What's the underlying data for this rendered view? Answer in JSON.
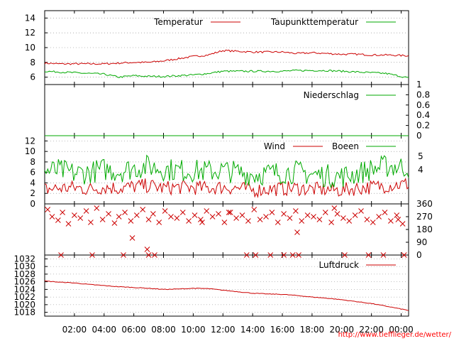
{
  "source_url": "http://www.tiefflieger.de/wetter/",
  "colors": {
    "primary": "#cc0000",
    "secondary": "#00aa00",
    "grid": "#808080"
  },
  "time_axis": {
    "range_hours": [
      0,
      24.5
    ],
    "tick_hours": [
      2,
      4,
      6,
      8,
      10,
      12,
      14,
      16,
      18,
      20,
      22,
      24
    ],
    "tick_labels": [
      "02:00",
      "04:00",
      "06:00",
      "08:00",
      "10:00",
      "12:00",
      "14:00",
      "16:00",
      "18:00",
      "20:00",
      "22:00",
      "00:00"
    ]
  },
  "chart_data": [
    {
      "id": "temperature",
      "type": "line",
      "ylim": [
        5,
        15
      ],
      "yticks": [
        6,
        8,
        10,
        12,
        14
      ],
      "grid": true,
      "legend_position": "top-right",
      "series": [
        {
          "name": "Temperatur",
          "color": "#cc0000",
          "x": [
            0,
            1,
            2,
            3,
            4,
            5,
            6,
            7,
            8,
            9,
            10,
            11,
            11.5,
            12,
            13,
            14,
            15,
            16,
            17,
            18,
            19,
            20,
            21,
            22,
            23,
            24.5
          ],
          "values": [
            7.9,
            7.8,
            7.8,
            7.8,
            7.8,
            7.9,
            8.0,
            8.0,
            8.2,
            8.5,
            8.8,
            9.0,
            9.3,
            9.6,
            9.5,
            9.4,
            9.4,
            9.4,
            9.2,
            9.3,
            9.2,
            9.1,
            9.1,
            9.0,
            9.0,
            8.9
          ]
        },
        {
          "name": "Taupunkttemperatur",
          "color": "#00aa00",
          "x": [
            0,
            1,
            2,
            3,
            4,
            5,
            6,
            7,
            8,
            9,
            10,
            11,
            12,
            13,
            14,
            15,
            16,
            17,
            18,
            19,
            20,
            21,
            22,
            23,
            24.5
          ],
          "values": [
            6.8,
            6.7,
            6.6,
            6.5,
            6.4,
            6.0,
            6.2,
            6.1,
            6.1,
            6.2,
            6.3,
            6.5,
            6.8,
            6.8,
            6.8,
            6.8,
            6.8,
            6.9,
            6.9,
            6.9,
            6.8,
            6.7,
            6.6,
            6.5,
            5.9
          ]
        }
      ]
    },
    {
      "id": "precipitation",
      "type": "line",
      "ylim": [
        0,
        1
      ],
      "yticks": [
        0,
        0.2,
        0.4,
        0.6,
        0.8,
        1
      ],
      "grid": false,
      "legend_position": "top-right",
      "series": [
        {
          "name": "Niederschlag",
          "color": "#00aa00",
          "x": [
            0,
            24.5
          ],
          "values": [
            0,
            0
          ]
        }
      ]
    },
    {
      "id": "wind",
      "type": "line",
      "ylim": [
        0,
        13
      ],
      "yticks": [
        0,
        2,
        4,
        6,
        8,
        10,
        12
      ],
      "right_ticks": [
        4,
        5
      ],
      "grid": true,
      "legend_position": "top-right",
      "series": [
        {
          "name": "Wind",
          "color": "#cc0000",
          "x": [
            0,
            1,
            2,
            3,
            4,
            5,
            6,
            7,
            8,
            9,
            10,
            11,
            12,
            13,
            14,
            15,
            16,
            17,
            18,
            19,
            20,
            21,
            22,
            23,
            24.5
          ],
          "values": [
            2.8,
            3.0,
            3.1,
            2.8,
            3.2,
            3.0,
            3.3,
            3.5,
            3.0,
            3.2,
            3.1,
            3.0,
            3.2,
            3.0,
            2.6,
            2.8,
            2.9,
            3.0,
            2.8,
            2.7,
            2.6,
            3.0,
            3.2,
            3.5,
            3.8
          ]
        },
        {
          "name": "Boeen",
          "color": "#00aa00",
          "x": [
            0,
            1,
            2,
            3,
            4,
            5,
            6,
            7,
            8,
            9,
            10,
            11,
            12,
            13,
            14,
            15,
            16,
            17,
            18,
            19,
            20,
            21,
            22,
            23,
            24.5
          ],
          "values": [
            6.2,
            6.4,
            5.8,
            6.0,
            6.6,
            6.2,
            6.8,
            7.2,
            6.6,
            6.4,
            6.3,
            6.2,
            6.4,
            6.0,
            5.6,
            5.8,
            6.0,
            6.1,
            5.6,
            5.4,
            5.2,
            5.8,
            6.6,
            7.2,
            7.0
          ]
        }
      ]
    },
    {
      "id": "wind_direction",
      "type": "scatter",
      "ylim": [
        0,
        360
      ],
      "yticks": [
        0,
        90,
        180,
        270,
        360
      ],
      "grid": false,
      "marker": "x",
      "series": [
        {
          "color": "#cc0000",
          "x": [
            0.2,
            0.5,
            0.9,
            1.2,
            1.6,
            2.0,
            2.4,
            2.8,
            3.1,
            3.5,
            3.9,
            4.3,
            4.7,
            5.0,
            5.4,
            5.8,
            6.2,
            6.6,
            7.0,
            7.3,
            7.7,
            8.1,
            8.5,
            8.9,
            9.3,
            9.7,
            10.1,
            10.5,
            10.9,
            11.3,
            11.7,
            12.1,
            12.5,
            12.9,
            13.3,
            13.7,
            14.1,
            14.5,
            14.9,
            15.3,
            15.7,
            16.1,
            16.5,
            16.9,
            17.3,
            17.7,
            18.1,
            18.5,
            18.9,
            19.3,
            19.7,
            20.1,
            20.5,
            20.9,
            21.3,
            21.7,
            22.1,
            22.5,
            22.9,
            23.3,
            23.7,
            24.1,
            1.1,
            3.2,
            5.3,
            7.0,
            7.4,
            13.6,
            14.2,
            15.2,
            16.1,
            16.7,
            17.1,
            20.2,
            21.8,
            22.8,
            24.2,
            6.9,
            5.9,
            10.6,
            12.4,
            17.0,
            19.5,
            23.8
          ],
          "values": [
            320,
            270,
            245,
            300,
            220,
            280,
            260,
            310,
            230,
            330,
            250,
            290,
            225,
            270,
            300,
            240,
            280,
            320,
            250,
            290,
            230,
            310,
            270,
            260,
            300,
            240,
            280,
            250,
            310,
            270,
            290,
            230,
            300,
            260,
            280,
            240,
            320,
            250,
            270,
            300,
            230,
            290,
            260,
            310,
            240,
            280,
            270,
            250,
            300,
            230,
            290,
            260,
            240,
            280,
            310,
            250,
            230,
            270,
            300,
            240,
            280,
            220,
            0,
            0,
            0,
            0,
            0,
            0,
            0,
            0,
            0,
            0,
            0,
            0,
            0,
            0,
            0,
            40,
            120,
            230,
            300,
            160,
            330,
            250
          ]
        }
      ]
    },
    {
      "id": "pressure",
      "type": "line",
      "ylim": [
        1017,
        1033
      ],
      "yticks": [
        1018,
        1020,
        1022,
        1024,
        1026,
        1028,
        1030,
        1032
      ],
      "grid": true,
      "legend_position": "top-right",
      "series": [
        {
          "name": "Luftdruck",
          "color": "#cc0000",
          "x": [
            0,
            1,
            2,
            3,
            4,
            5,
            6,
            7,
            8,
            9,
            10,
            11,
            12,
            13,
            14,
            15,
            16,
            17,
            18,
            19,
            20,
            21,
            22,
            23,
            24.5
          ],
          "values": [
            1026.2,
            1025.9,
            1025.7,
            1025.3,
            1025.0,
            1024.7,
            1024.5,
            1024.3,
            1024.0,
            1024.1,
            1024.3,
            1024.2,
            1023.8,
            1023.4,
            1023.0,
            1022.8,
            1022.7,
            1022.4,
            1022.0,
            1021.7,
            1021.3,
            1020.8,
            1020.3,
            1019.6,
            1018.5
          ]
        }
      ]
    }
  ]
}
